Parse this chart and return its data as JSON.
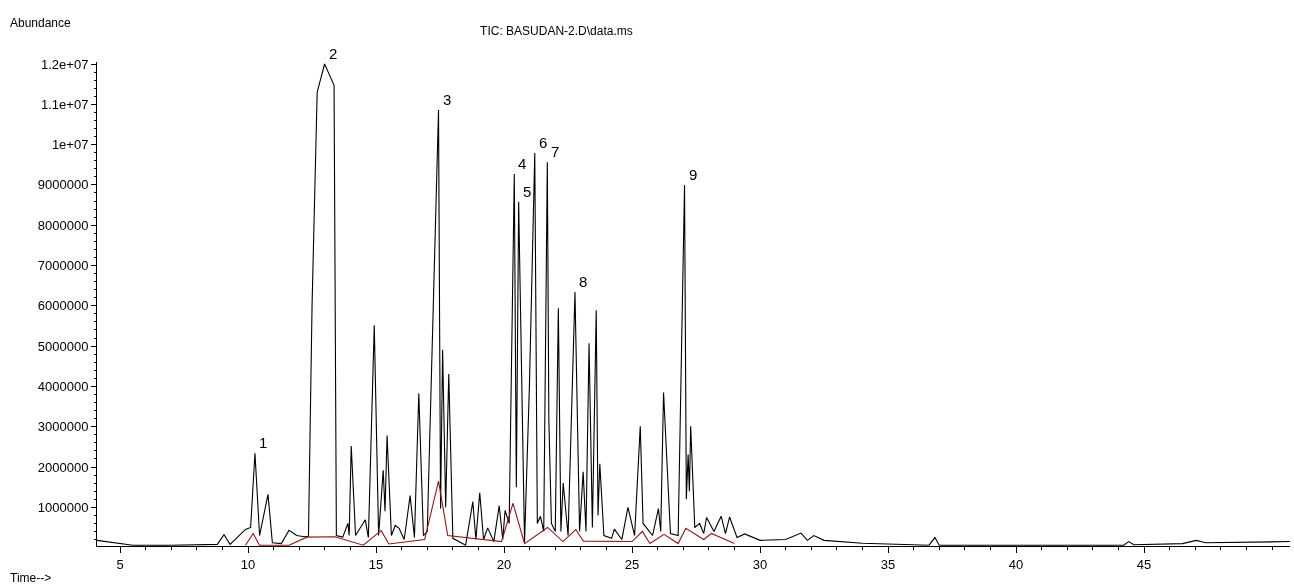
{
  "chart_data": {
    "type": "line",
    "title": "TIC: BASUDAN-2.D\\data.ms",
    "xlabel": "Time-->",
    "ylabel": "Abundance",
    "xlim": [
      4.1,
      50.7
    ],
    "ylim": [
      40000,
      12050000
    ],
    "xticks": [
      5,
      10,
      15,
      20,
      25,
      30,
      35,
      40,
      45
    ],
    "yticks": [
      1000000,
      2000000,
      3000000,
      4000000,
      5000000,
      6000000,
      7000000,
      8000000,
      9000000,
      {
        "value": 10000000,
        "label": "1e+07"
      },
      {
        "value": 11000000,
        "label": "1.1e+07"
      },
      {
        "value": 12000000,
        "label": "1.2e+07"
      }
    ],
    "marker": "none",
    "line_style": "solid",
    "series": [
      {
        "color": "#000000",
        "x": [
          4.1,
          5.5,
          7.0,
          8.8,
          9.06,
          9.3,
          9.9,
          10.1,
          10.27,
          10.45,
          10.78,
          10.95,
          11.3,
          11.6,
          11.9,
          12.2,
          12.36,
          12.5,
          12.7,
          12.99,
          13.2,
          13.36,
          13.45,
          13.7,
          13.9,
          13.95,
          14.03,
          14.2,
          14.58,
          14.7,
          14.93,
          15.1,
          15.28,
          15.35,
          15.43,
          15.6,
          15.75,
          15.9,
          16.1,
          16.33,
          16.5,
          16.67,
          16.85,
          17.0,
          17.44,
          17.52,
          17.6,
          17.72,
          17.84,
          18.0,
          18.5,
          18.78,
          18.9,
          19.05,
          19.2,
          19.36,
          19.6,
          19.81,
          19.95,
          20.04,
          20.2,
          20.4,
          20.48,
          20.57,
          20.8,
          20.99,
          21.2,
          21.3,
          21.42,
          21.55,
          21.69,
          21.75,
          21.85,
          22.0,
          22.12,
          22.22,
          22.31,
          22.5,
          22.77,
          22.95,
          23.09,
          23.2,
          23.32,
          23.45,
          23.6,
          23.67,
          23.74,
          23.9,
          24.2,
          24.31,
          24.6,
          24.84,
          25.1,
          25.32,
          25.43,
          25.8,
          26.03,
          26.12,
          26.23,
          26.5,
          26.8,
          27.05,
          27.12,
          27.19,
          27.24,
          27.29,
          27.45,
          27.64,
          27.8,
          27.91,
          28.2,
          28.48,
          28.65,
          28.81,
          29.1,
          29.4,
          30.0,
          31.0,
          31.6,
          31.85,
          32.1,
          32.5,
          34.0,
          36.6,
          36.83,
          37.0,
          40.0,
          44.2,
          44.4,
          44.6,
          46.5,
          47.04,
          47.4,
          50.7
        ],
        "values": [
          180000,
          60000,
          60000,
          80000,
          320000,
          80000,
          450000,
          500000,
          2340000,
          300000,
          1320000,
          120000,
          100000,
          430000,
          300000,
          270000,
          280000,
          6000000,
          11300000,
          12000000,
          11700000,
          11470000,
          300000,
          260000,
          600000,
          300000,
          2520000,
          300000,
          690000,
          250000,
          5520000,
          300000,
          1920000,
          900000,
          2780000,
          300000,
          550000,
          480000,
          200000,
          1290000,
          250000,
          3830000,
          300000,
          400000,
          10860000,
          970000,
          4910000,
          1000000,
          4310000,
          230000,
          60000,
          1140000,
          200000,
          1360000,
          200000,
          490000,
          150000,
          1040000,
          200000,
          920000,
          600000,
          9270000,
          1500000,
          8580000,
          130000,
          4000000,
          9790000,
          600000,
          780000,
          400000,
          9560000,
          3150000,
          600000,
          400000,
          5940000,
          400000,
          1600000,
          300000,
          6340000,
          400000,
          1880000,
          400000,
          5070000,
          500000,
          5890000,
          800000,
          2080000,
          300000,
          230000,
          460000,
          200000,
          1000000,
          300000,
          3010000,
          600000,
          300000,
          970000,
          400000,
          3850000,
          350000,
          300000,
          9000000,
          1200000,
          2310000,
          1400000,
          3010000,
          500000,
          600000,
          350000,
          750000,
          400000,
          780000,
          350000,
          760000,
          250000,
          340000,
          180000,
          200000,
          360000,
          180000,
          300000,
          180000,
          110000,
          60000,
          250000,
          60000,
          60000,
          60000,
          150000,
          70000,
          100000,
          180000,
          120000,
          150000
        ]
      },
      {
        "color": "#8b1a1a",
        "x": [
          9.9,
          10.2,
          10.45,
          11.6,
          12.3,
          13.4,
          14.5,
          15.2,
          15.5,
          16.9,
          17.44,
          17.8,
          19.9,
          20.35,
          20.8,
          21.7,
          22.3,
          22.8,
          23.1,
          25.0,
          25.4,
          25.7,
          26.25,
          26.8,
          27.1,
          27.8,
          28.1,
          29.0
        ],
        "values": [
          60000,
          350000,
          60000,
          60000,
          260000,
          270000,
          60000,
          420000,
          90000,
          200000,
          1650000,
          300000,
          150000,
          1100000,
          100000,
          500000,
          150000,
          450000,
          160000,
          150000,
          400000,
          100000,
          330000,
          100000,
          480000,
          200000,
          350000,
          100000
        ]
      }
    ],
    "annotations": [
      {
        "text": "1",
        "x": 10.27,
        "y": 2340000
      },
      {
        "text": "2",
        "x": 12.99,
        "y": 12000000
      },
      {
        "text": "3",
        "x": 17.44,
        "y": 10860000
      },
      {
        "text": "4",
        "x": 20.4,
        "y": 9270000
      },
      {
        "text": "5",
        "x": 20.57,
        "y": 8580000
      },
      {
        "text": "6",
        "x": 21.2,
        "y": 9790000
      },
      {
        "text": "7",
        "x": 21.69,
        "y": 9560000
      },
      {
        "text": "8",
        "x": 22.77,
        "y": 6340000
      },
      {
        "text": "9",
        "x": 27.05,
        "y": 9000000
      }
    ]
  }
}
